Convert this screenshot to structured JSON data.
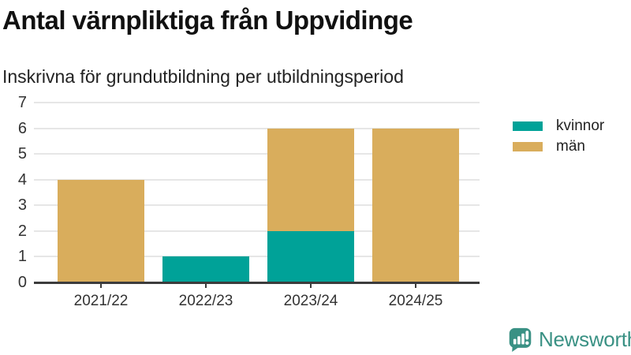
{
  "header": {
    "title": "Antal värnpliktiga från Uppvidinge",
    "subtitle": "Inskrivna för grundutbildning per utbildningsperiod"
  },
  "chart_data": {
    "type": "bar",
    "stacked": true,
    "title": "Antal värnpliktiga från Uppvidinge",
    "subtitle": "Inskrivna för grundutbildning per utbildningsperiod",
    "categories": [
      "2021/22",
      "2022/23",
      "2023/24",
      "2024/25"
    ],
    "series": [
      {
        "name": "kvinnor",
        "color": "#00a298",
        "values": [
          0,
          1,
          2,
          0
        ]
      },
      {
        "name": "män",
        "color": "#d9ad5c",
        "values": [
          4,
          0,
          4,
          6
        ]
      }
    ],
    "xlabel": "",
    "ylabel": "",
    "ylim": [
      0,
      7
    ],
    "yticks": [
      0,
      1,
      2,
      3,
      4,
      5,
      6,
      7
    ],
    "grid": true,
    "legend_position": "right"
  },
  "footer": {
    "brand": "Newsworthy",
    "brand_color": "#3a9184"
  }
}
